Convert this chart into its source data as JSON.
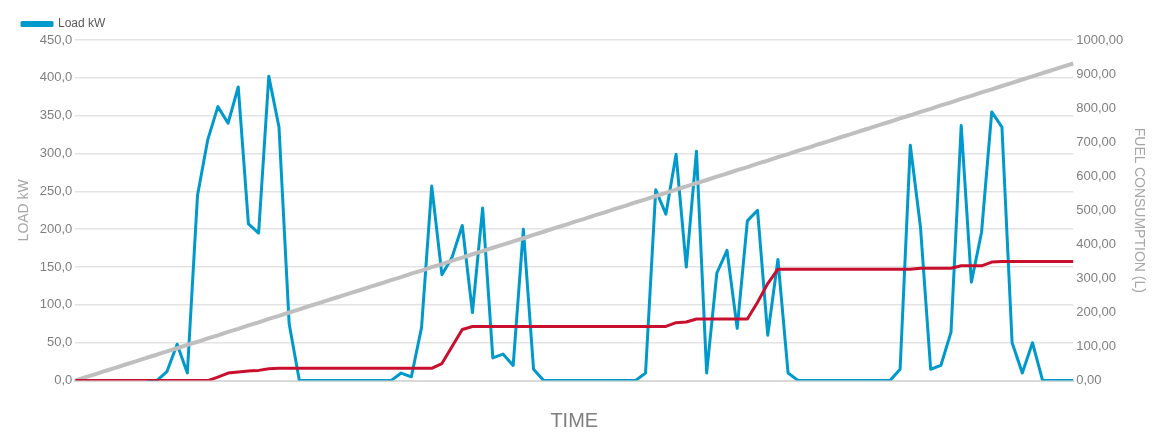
{
  "chart_data": {
    "type": "line",
    "xlabel": "TIME",
    "ylabel": "LOAD kW",
    "y2label": "FUEL CONSUMPTION (L)",
    "categories": [
      null,
      null,
      null,
      null,
      null,
      null,
      null,
      null,
      null,
      null,
      null,
      null,
      null,
      null,
      null,
      null,
      null,
      null,
      null,
      null,
      null,
      null,
      null,
      null,
      null,
      null,
      null,
      null,
      null,
      null,
      null,
      null,
      null,
      null,
      null,
      null,
      null,
      null,
      null,
      null,
      null,
      null,
      null,
      null,
      null,
      null,
      null,
      null,
      null,
      null,
      null,
      null,
      null,
      null,
      null,
      null,
      null,
      null,
      null,
      null,
      null,
      null,
      null,
      null,
      null,
      null,
      null,
      null,
      null,
      null,
      null,
      null,
      null,
      null,
      null,
      null,
      null,
      null,
      null,
      null,
      null,
      null,
      null,
      null,
      null,
      null,
      null,
      null,
      null,
      null,
      null,
      null,
      null,
      null,
      null,
      null,
      null,
      null,
      null
    ],
    "series": [
      {
        "name": "Load kW",
        "color": "#0099cc",
        "values": [
          null,
          null,
          null,
          null,
          null,
          null,
          null,
          0,
          0,
          12,
          48,
          10,
          245,
          318,
          362,
          340,
          388,
          207,
          195,
          402,
          335,
          75,
          0,
          0,
          0,
          0,
          0,
          0,
          0,
          0,
          0,
          0,
          10,
          5,
          70,
          257,
          140,
          163,
          205,
          90,
          228,
          30,
          35,
          20,
          200,
          15,
          0,
          0,
          0,
          0,
          0,
          0,
          0,
          0,
          0,
          0,
          10,
          252,
          220,
          299,
          150,
          303,
          10,
          142,
          172,
          69,
          211,
          225,
          60,
          160,
          10,
          0,
          0,
          0,
          0,
          0,
          0,
          0,
          0,
          0,
          0,
          15,
          311,
          203,
          15,
          20,
          64,
          337,
          130,
          196,
          355,
          335,
          50,
          10,
          50,
          0,
          0,
          0,
          0
        ]
      },
      {
        "color": "#bfbfbf",
        "axis": "y2",
        "values": [
          0,
          10,
          19,
          29,
          38,
          48,
          57,
          67,
          76,
          86,
          95,
          105,
          114,
          124,
          133,
          143,
          152,
          162,
          171,
          181,
          190,
          200,
          209,
          219,
          228,
          238,
          247,
          257,
          266,
          276,
          285,
          295,
          304,
          314,
          323,
          333,
          342,
          352,
          361,
          371,
          380,
          390,
          399,
          409,
          418,
          428,
          437,
          447,
          456,
          466,
          475,
          485,
          494,
          504,
          513,
          523,
          532,
          542,
          551,
          561,
          570,
          580,
          589,
          599,
          608,
          618,
          627,
          637,
          646,
          656,
          665,
          675,
          684,
          694,
          703,
          713,
          722,
          732,
          741,
          751,
          760,
          770,
          779,
          789,
          798,
          808,
          817,
          827,
          836,
          846,
          855,
          865,
          874,
          884,
          893,
          903,
          912,
          922,
          931
        ]
      },
      {
        "color": "#c8102e",
        "axis": "y2",
        "values": [
          0,
          0,
          0,
          0,
          0,
          0,
          0,
          0,
          0,
          0,
          0,
          0,
          0,
          0,
          10,
          22,
          25,
          28,
          30,
          35,
          36,
          36,
          36,
          36,
          36,
          36,
          36,
          36,
          36,
          36,
          36,
          36,
          36,
          36,
          36,
          36,
          50,
          100,
          150,
          159,
          159,
          159,
          159,
          159,
          159,
          159,
          159,
          159,
          159,
          159,
          159,
          159,
          159,
          159,
          159,
          159,
          159,
          159,
          159,
          170,
          172,
          181,
          181,
          181,
          181,
          181,
          181,
          230,
          285,
          327,
          327,
          327,
          327,
          327,
          327,
          327,
          327,
          327,
          327,
          327,
          327,
          327,
          327,
          330,
          330,
          330,
          330,
          337,
          337,
          337,
          348,
          350,
          350,
          350,
          350,
          350,
          350,
          350,
          350
        ]
      }
    ],
    "ylim": [
      0,
      450
    ],
    "yticks": [
      {
        "value": 0,
        "label": "0,0"
      },
      {
        "value": 50,
        "label": "50,0"
      },
      {
        "value": 100,
        "label": "100,0"
      },
      {
        "value": 150,
        "label": "150,0"
      },
      {
        "value": 200,
        "label": "200,0"
      },
      {
        "value": 250,
        "label": "250,0"
      },
      {
        "value": 300,
        "label": "300,0"
      },
      {
        "value": 350,
        "label": "350,0"
      },
      {
        "value": 400,
        "label": "400,0"
      },
      {
        "value": 450,
        "label": "450,0"
      }
    ],
    "y2lim": [
      0,
      1000
    ],
    "y2ticks": [
      {
        "value": 0,
        "label": "0,00"
      },
      {
        "value": 100,
        "label": "100,00"
      },
      {
        "value": 200,
        "label": "200,00"
      },
      {
        "value": 300,
        "label": "300,00"
      },
      {
        "value": 400,
        "label": "400,00"
      },
      {
        "value": 500,
        "label": "500,00"
      },
      {
        "value": 600,
        "label": "600,00"
      },
      {
        "value": 700,
        "label": "700,00"
      },
      {
        "value": 800,
        "label": "800,00"
      },
      {
        "value": 900,
        "label": "900,00"
      },
      {
        "value": 1000,
        "label": "1000,00"
      }
    ],
    "grid": "y",
    "legend": "top",
    "marker": "none",
    "line_style": "solid"
  }
}
